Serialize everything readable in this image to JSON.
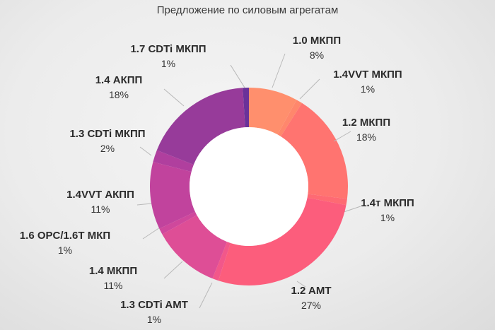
{
  "chart_data": {
    "type": "pie",
    "title": "Предложение по силовым агрегатам",
    "slices": [
      {
        "name": "1.0 МКПП",
        "value": 8,
        "label": "8%",
        "color": "#ff8f6d"
      },
      {
        "name": "1.4VVT МКПП",
        "value": 1,
        "label": "1%",
        "color": "#ff876c"
      },
      {
        "name": "1.2 МКПП",
        "value": 18,
        "label": "18%",
        "color": "#ff7470"
      },
      {
        "name": "1.4т МКПП",
        "value": 1,
        "label": "1%",
        "color": "#fe6a73"
      },
      {
        "name": "1.2 AMT",
        "value": 27,
        "label": "27%",
        "color": "#fc5d7c"
      },
      {
        "name": "1.3 CDTi AMT",
        "value": 1,
        "label": "1%",
        "color": "#f2578a"
      },
      {
        "name": "1.4 МКПП",
        "value": 11,
        "label": "11%",
        "color": "#de4e96"
      },
      {
        "name": "1.6 OPC/1.6T МКП",
        "value": 1,
        "label": "1%",
        "color": "#cf489c"
      },
      {
        "name": "1.4VVT АКПП",
        "value": 11,
        "label": "11%",
        "color": "#c1439d"
      },
      {
        "name": "1.3 CDTi МКПП",
        "value": 2,
        "label": "2%",
        "color": "#b03f9e"
      },
      {
        "name": "1.4 АКПП",
        "value": 18,
        "label": "18%",
        "color": "#973b9a"
      },
      {
        "name": "1.7 CDTi МКПП",
        "value": 1,
        "label": "1%",
        "color": "#6a3299"
      }
    ]
  }
}
